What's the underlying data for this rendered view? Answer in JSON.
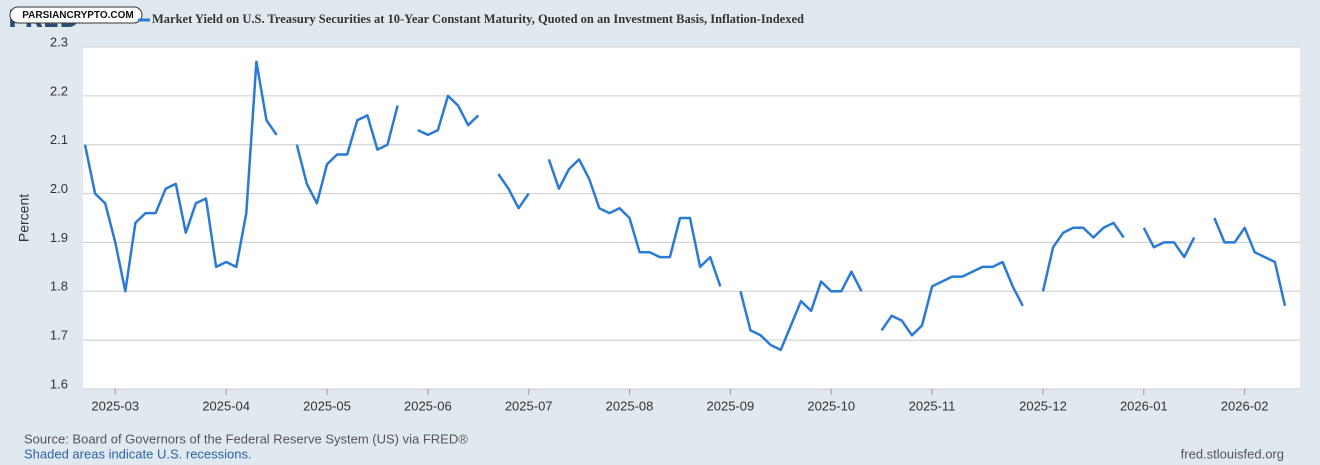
{
  "logo": "FRED",
  "watermark": "PARSIANCRYPTO.COM",
  "site": "fred.stlouisfed.org",
  "source": "Source: Board of Governors of the Federal Reserve System (US) via FRED®",
  "recession_note": "Shaded areas indicate U.S. recessions.",
  "chart_data": {
    "type": "line",
    "y_label": "Percent",
    "grid": true,
    "categories": [
      null,
      null,
      null,
      "2025-03",
      null,
      null,
      null,
      null,
      null,
      null,
      null,
      null,
      null,
      null,
      "2025-04",
      null,
      null,
      null,
      null,
      null,
      null,
      null,
      null,
      null,
      "2025-05",
      null,
      null,
      null,
      null,
      null,
      null,
      null,
      null,
      null,
      "2025-06",
      null,
      null,
      null,
      null,
      null,
      null,
      null,
      null,
      null,
      "2025-07",
      null,
      null,
      null,
      null,
      null,
      null,
      null,
      null,
      null,
      "2025-08",
      null,
      null,
      null,
      null,
      null,
      null,
      null,
      null,
      null,
      "2025-09",
      null,
      null,
      null,
      null,
      null,
      null,
      null,
      null,
      null,
      "2025-10",
      null,
      null,
      null,
      null,
      null,
      null,
      null,
      null,
      null,
      "2025-11",
      null,
      null,
      null,
      null,
      null,
      null,
      null,
      null,
      null,
      null,
      "2025-12",
      null,
      null,
      null,
      null,
      null,
      null,
      null,
      null,
      null,
      "2026-01",
      null,
      null,
      null,
      null,
      null,
      null,
      null,
      null,
      null,
      "2026-02",
      null,
      null,
      null,
      null
    ],
    "series": [
      {
        "name": "Market Yield on U.S. Treasury Securities at 10-Year Constant Maturity, Quoted on an Investment Basis, Inflation-Indexed",
        "color": "#2a7ad6",
        "values": [
          2.1,
          2.0,
          1.98,
          1.9,
          1.8,
          1.94,
          1.96,
          1.96,
          2.01,
          2.02,
          1.92,
          1.98,
          1.99,
          1.85,
          1.86,
          1.85,
          1.96,
          2.27,
          2.15,
          2.12,
          null,
          2.1,
          2.02,
          1.98,
          2.06,
          2.08,
          2.08,
          2.15,
          2.16,
          2.09,
          2.1,
          2.18,
          null,
          2.13,
          2.12,
          2.13,
          2.2,
          2.18,
          2.14,
          2.16,
          null,
          2.04,
          2.01,
          1.97,
          2.0,
          null,
          2.07,
          2.01,
          2.05,
          2.07,
          2.03,
          1.97,
          1.96,
          1.97,
          1.95,
          1.88,
          1.88,
          1.87,
          1.87,
          1.95,
          1.95,
          1.85,
          1.87,
          1.81,
          null,
          1.8,
          1.72,
          1.71,
          1.69,
          1.68,
          1.73,
          1.78,
          1.76,
          1.82,
          1.8,
          1.8,
          1.84,
          1.8,
          null,
          1.72,
          1.75,
          1.74,
          1.71,
          1.73,
          1.81,
          1.82,
          1.83,
          1.83,
          1.84,
          1.85,
          1.85,
          1.86,
          1.81,
          1.77,
          null,
          1.8,
          1.89,
          1.92,
          1.93,
          1.93,
          1.91,
          1.93,
          1.94,
          1.91,
          null,
          1.93,
          1.89,
          1.9,
          1.9,
          1.87,
          1.91,
          null,
          1.95,
          1.9,
          1.9,
          1.93,
          1.88,
          1.87,
          1.86,
          1.77
        ]
      }
    ],
    "ylim": [
      1.6,
      2.3
    ],
    "yticks": [
      1.6,
      1.7,
      1.8,
      1.9,
      {
        "value": 2.0,
        "label": "2.0"
      },
      2.1,
      2.2,
      2.3
    ]
  }
}
